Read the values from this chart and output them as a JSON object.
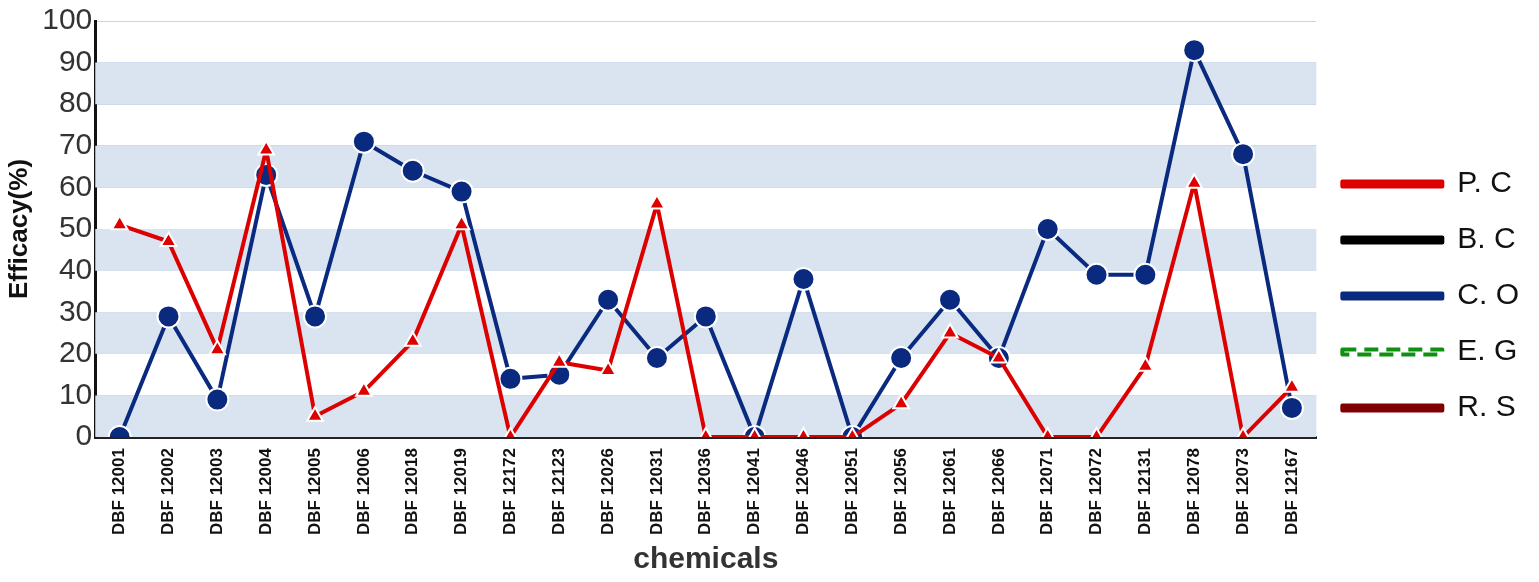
{
  "chart_data": {
    "type": "line",
    "xlabel": "chemicals",
    "ylabel": "Efficacy(%)",
    "categories": [
      "DBF 12001",
      "DBF 12002",
      "DBF 12003",
      "DBF 12004",
      "DBF 12005",
      "DBF 12006",
      "DBF 12018",
      "DBF 12019",
      "DBF 12172",
      "DBF 12123",
      "DBF 12026",
      "DBF 12031",
      "DBF 12036",
      "DBF 12041",
      "DBF 12046",
      "DBF 12051",
      "DBF 12056",
      "DBF 12061",
      "DBF 12066",
      "DBF 12071",
      "DBF 12072",
      "DBF 12131",
      "DBF 12078",
      "DBF 12073",
      "DBF 12167"
    ],
    "series": [
      {
        "name": "P. C",
        "color": "#dd0000",
        "marker": "triangle",
        "values": [
          51,
          47,
          21,
          69,
          5,
          11,
          23,
          51,
          0,
          18,
          16,
          56,
          0,
          0,
          0,
          0,
          8,
          25,
          19,
          0,
          0,
          17,
          61,
          0,
          12
        ]
      },
      {
        "name": "B. C",
        "color": "#000000",
        "marker": "cross",
        "values": [
          null,
          null,
          null,
          null,
          null,
          null,
          null,
          null,
          null,
          null,
          null,
          null,
          null,
          null,
          null,
          null,
          null,
          null,
          null,
          null,
          null,
          null,
          null,
          null,
          null
        ]
      },
      {
        "name": "C. O",
        "color": "#0a2a80",
        "marker": "circle",
        "values": [
          0,
          29,
          9,
          63,
          29,
          71,
          64,
          59,
          14,
          15,
          33,
          19,
          29,
          0,
          38,
          0,
          19,
          33,
          19,
          50,
          39,
          39,
          93,
          68,
          7
        ]
      },
      {
        "name": "E. G",
        "color": "#109010",
        "marker": "diamond",
        "line_style": "dashed",
        "values": [
          null,
          null,
          null,
          null,
          null,
          null,
          null,
          null,
          null,
          null,
          null,
          null,
          null,
          null,
          null,
          null,
          null,
          null,
          null,
          null,
          null,
          null,
          null,
          null,
          null
        ]
      },
      {
        "name": "R. S",
        "color": "#800000",
        "marker": "none",
        "values": [
          null,
          null,
          null,
          null,
          null,
          null,
          null,
          null,
          null,
          null,
          null,
          null,
          null,
          null,
          null,
          null,
          null,
          null,
          null,
          null,
          null,
          null,
          null,
          null,
          null
        ]
      }
    ],
    "ylim": [
      0,
      100
    ],
    "yticks": [
      0,
      10,
      20,
      30,
      40,
      50,
      60,
      70,
      80,
      90,
      100
    ],
    "grid": "y",
    "legend": "right"
  }
}
